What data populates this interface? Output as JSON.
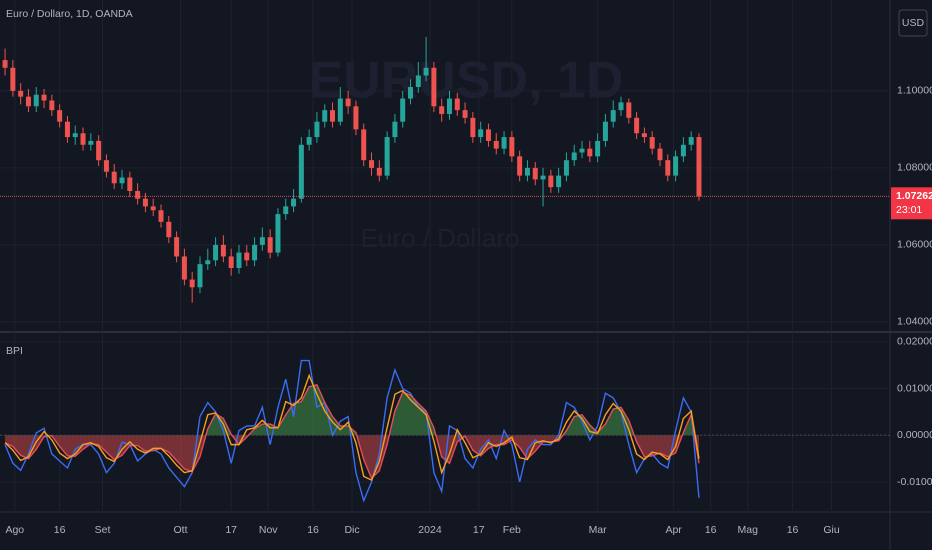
{
  "chart_data": [
    {
      "type": "candlestick",
      "title": "Euro / Dollaro, 1D, OANDA",
      "watermark": "EURUSD, 1D",
      "watermark_subtitle": "Euro / Dollaro",
      "currency": "USD",
      "up_color": "#26a69a",
      "down_color": "#ef5350",
      "grid": true,
      "x": [
        0,
        2,
        4,
        6,
        8,
        10,
        12,
        14,
        16,
        18,
        20,
        22,
        24,
        26,
        28,
        30,
        32,
        34,
        36,
        38,
        40,
        42,
        44,
        46,
        48,
        50,
        52,
        54,
        56,
        58,
        60,
        62,
        64,
        66,
        68,
        70,
        72,
        74,
        76,
        78,
        80,
        82,
        84,
        86,
        88,
        90,
        92,
        94,
        96,
        98,
        100,
        102,
        104,
        106,
        108,
        110,
        112,
        114,
        116,
        118,
        120,
        122,
        124,
        126,
        128,
        130,
        132,
        134,
        136,
        138,
        140,
        142,
        144,
        146,
        148,
        150,
        152,
        154,
        156,
        158,
        160,
        162,
        164,
        166,
        168,
        170,
        172,
        174,
        176,
        178
      ],
      "open": [
        1.108,
        1.106,
        1.1,
        1.0985,
        1.096,
        1.099,
        1.0975,
        1.095,
        1.092,
        1.088,
        1.089,
        1.086,
        1.087,
        1.082,
        1.079,
        1.076,
        1.0775,
        1.074,
        1.072,
        1.07,
        1.069,
        1.066,
        1.062,
        1.057,
        1.051,
        1.049,
        1.055,
        1.056,
        1.06,
        1.057,
        1.054,
        1.058,
        1.056,
        1.06,
        1.062,
        1.058,
        1.068,
        1.07,
        1.072,
        1.086,
        1.088,
        1.092,
        1.095,
        1.092,
        1.098,
        1.096,
        1.09,
        1.082,
        1.08,
        1.078,
        1.088,
        1.092,
        1.098,
        1.101,
        1.104,
        1.106,
        1.096,
        1.094,
        1.098,
        1.095,
        1.093,
        1.088,
        1.09,
        1.087,
        1.085,
        1.088,
        1.083,
        1.078,
        1.08,
        1.077,
        1.078,
        1.075,
        1.078,
        1.082,
        1.084,
        1.085,
        1.083,
        1.087,
        1.092,
        1.095,
        1.097,
        1.093,
        1.089,
        1.088,
        1.085,
        1.082,
        1.078,
        1.083,
        1.086,
        1.088
      ],
      "high": [
        1.111,
        1.108,
        1.102,
        1.1005,
        1.101,
        1.1005,
        1.099,
        1.0965,
        1.0935,
        1.091,
        1.0905,
        1.089,
        1.0885,
        1.0835,
        1.081,
        1.0795,
        1.079,
        1.076,
        1.0735,
        1.072,
        1.0705,
        1.0675,
        1.0635,
        1.059,
        1.053,
        1.057,
        1.059,
        1.062,
        1.0625,
        1.059,
        1.06,
        1.06,
        1.062,
        1.0645,
        1.064,
        1.0695,
        1.072,
        1.0745,
        1.088,
        1.09,
        1.0945,
        1.0965,
        1.097,
        1.101,
        1.1,
        1.0975,
        1.0915,
        1.084,
        1.082,
        1.0895,
        1.094,
        1.1,
        1.103,
        1.1075,
        1.114,
        1.1075,
        1.098,
        1.1,
        1.0995,
        1.097,
        1.0945,
        1.092,
        1.0915,
        1.089,
        1.0895,
        1.0895,
        1.0845,
        1.082,
        1.0815,
        1.08,
        1.0795,
        1.08,
        1.084,
        1.086,
        1.087,
        1.087,
        1.089,
        1.094,
        1.0975,
        1.0985,
        1.098,
        1.0945,
        1.0905,
        1.0895,
        1.0865,
        1.0835,
        1.0845,
        1.088,
        1.0895,
        1.089
      ],
      "low": [
        1.104,
        1.0985,
        1.0965,
        1.0945,
        1.0945,
        1.0955,
        1.0935,
        1.0905,
        1.0865,
        1.086,
        1.0845,
        1.0845,
        1.0805,
        1.0775,
        1.0745,
        1.0745,
        1.0725,
        1.0705,
        1.0685,
        1.0675,
        1.0645,
        1.0605,
        1.0555,
        1.0495,
        1.045,
        1.0475,
        1.0535,
        1.0545,
        1.0555,
        1.052,
        1.0525,
        1.0545,
        1.0545,
        1.0585,
        1.0565,
        1.057,
        1.0665,
        1.0685,
        1.071,
        1.0845,
        1.0865,
        1.0905,
        1.0905,
        1.091,
        1.094,
        1.0885,
        1.0805,
        1.078,
        1.0765,
        1.077,
        1.0865,
        1.0905,
        1.0965,
        1.0995,
        1.1025,
        1.0945,
        1.092,
        1.0925,
        1.0935,
        1.0915,
        1.0865,
        1.0865,
        1.0855,
        1.0835,
        1.0835,
        1.0815,
        1.0765,
        1.0765,
        1.0755,
        1.07,
        1.0735,
        1.0735,
        1.0765,
        1.0805,
        1.0825,
        1.0815,
        1.0815,
        1.0855,
        1.0905,
        1.0935,
        1.0915,
        1.0875,
        1.0865,
        1.0835,
        1.0805,
        1.0765,
        1.0765,
        1.0815,
        1.0845,
        1.0715
      ],
      "close": [
        1.106,
        1.1,
        1.0985,
        1.096,
        1.099,
        1.0975,
        1.095,
        1.092,
        1.088,
        1.089,
        1.086,
        1.087,
        1.082,
        1.079,
        1.076,
        1.0775,
        1.074,
        1.072,
        1.07,
        1.069,
        1.066,
        1.062,
        1.057,
        1.051,
        1.049,
        1.055,
        1.056,
        1.06,
        1.057,
        1.054,
        1.058,
        1.056,
        1.06,
        1.062,
        1.058,
        1.068,
        1.07,
        1.072,
        1.086,
        1.088,
        1.092,
        1.095,
        1.092,
        1.098,
        1.096,
        1.09,
        1.082,
        1.08,
        1.078,
        1.088,
        1.092,
        1.098,
        1.101,
        1.104,
        1.106,
        1.096,
        1.094,
        1.098,
        1.095,
        1.093,
        1.088,
        1.09,
        1.087,
        1.085,
        1.088,
        1.083,
        1.078,
        1.08,
        1.077,
        1.078,
        1.075,
        1.078,
        1.082,
        1.084,
        1.085,
        1.083,
        1.087,
        1.092,
        1.095,
        1.097,
        1.093,
        1.089,
        1.088,
        1.085,
        1.082,
        1.078,
        1.083,
        1.086,
        1.088,
        1.0726
      ],
      "last_price": 1.07262,
      "countdown": "23:01",
      "xlim": [
        -1.3,
        227
      ],
      "ylim": [
        1.0379,
        1.1236
      ],
      "yticks": [
        {
          "value": 1.04,
          "label": "1.04000"
        },
        {
          "value": 1.06,
          "label": "1.06000"
        },
        {
          "value": 1.08,
          "label": "1.08000"
        },
        {
          "value": 1.1,
          "label": "1.10000"
        }
      ]
    },
    {
      "type": "line",
      "title": "BPI",
      "grid": true,
      "fill_up": "rgba(76,175,80,0.45)",
      "fill_down": "rgba(239,83,80,0.45)",
      "x": [
        0,
        2,
        4,
        6,
        8,
        10,
        12,
        14,
        16,
        18,
        20,
        22,
        24,
        26,
        28,
        30,
        32,
        34,
        36,
        38,
        40,
        42,
        44,
        46,
        48,
        50,
        52,
        54,
        56,
        58,
        60,
        62,
        64,
        66,
        68,
        70,
        72,
        74,
        76,
        78,
        80,
        82,
        84,
        86,
        88,
        90,
        92,
        94,
        96,
        98,
        100,
        102,
        104,
        106,
        108,
        110,
        112,
        114,
        116,
        118,
        120,
        122,
        124,
        126,
        128,
        130,
        132,
        134,
        136,
        138,
        140,
        142,
        144,
        146,
        148,
        150,
        152,
        154,
        156,
        158,
        160,
        162,
        164,
        166,
        168,
        170,
        172,
        174,
        176,
        178
      ],
      "series": [
        {
          "color": "#3a6cf4",
          "values": [
            -0.002,
            -0.006,
            -0.0075,
            -0.004,
            0.0005,
            0.0015,
            -0.004,
            -0.0055,
            -0.007,
            -0.003,
            -0.002,
            -0.002,
            -0.004,
            -0.008,
            -0.006,
            -0.0015,
            -0.002,
            -0.0055,
            -0.004,
            -0.003,
            -0.004,
            -0.007,
            -0.009,
            -0.011,
            -0.008,
            0.004,
            0.007,
            0.005,
            0.001,
            -0.006,
            0.001,
            0.002,
            0.002,
            0.006,
            -0.002,
            0.006,
            0.012,
            0.004,
            0.016,
            0.016,
            0.006,
            0.007,
            0,
            0.003,
            0.004,
            -0.008,
            -0.014,
            -0.01,
            -0.004,
            0.008,
            0.014,
            0.01,
            0.009,
            0.006,
            0.005,
            -0.008,
            -0.012,
            0.002,
            0.001,
            -0.005,
            -0.007,
            -0.003,
            -0.001,
            -0.005,
            0.001,
            -0.002,
            -0.01,
            -0.003,
            -0.001,
            -0.002,
            -0.002,
            0,
            0.007,
            0.006,
            0.003,
            -0.001,
            0.002,
            0.009,
            0.008,
            0.005,
            -0.002,
            -0.008,
            -0.005,
            -0.004,
            -0.006,
            -0.007,
            0.001,
            0.008,
            0.005,
            -0.0134
          ]
        },
        {
          "color": "#e84b5c",
          "values": [
            -0.0016,
            -0.0024,
            -0.0043,
            -0.005,
            -0.003,
            -0.0003,
            -0.0001,
            -0.0024,
            -0.0044,
            -0.0045,
            -0.003,
            -0.0018,
            -0.002,
            -0.0036,
            -0.0052,
            -0.0043,
            -0.0022,
            -0.0022,
            -0.0034,
            -0.0033,
            -0.0028,
            -0.0036,
            -0.0054,
            -0.0072,
            -0.0078,
            -0.0046,
            0.0014,
            0.0046,
            0.0036,
            0.0002,
            -0.002,
            -0.0004,
            0.0014,
            0.0024,
            0.0024,
            0.0016,
            0.0044,
            0.0068,
            0.0072,
            0.0104,
            0.0108,
            0.007,
            0.004,
            0.002,
            0.002,
            0.0006,
            -0.0052,
            -0.0092,
            -0.0076,
            -0.002,
            0.0052,
            0.0092,
            0.0086,
            0.0068,
            0.0052,
            0.0016,
            -0.0046,
            -0.006,
            -0.0014,
            -0.0002,
            -0.0032,
            -0.0044,
            -0.0028,
            -0.002,
            -0.002,
            -0.001,
            -0.0026,
            -0.005,
            -0.0034,
            -0.0014,
            -0.0014,
            -0.0012,
            0.001,
            0.004,
            0.0044,
            0.0022,
            0.0006,
            0.0024,
            0.0056,
            0.006,
            0.0032,
            -0.0014,
            -0.0046,
            -0.0044,
            -0.0038,
            -0.0046,
            -0.0038,
            0.0006,
            0.0044,
            -0.006
          ]
        },
        {
          "color": "#f7a21b",
          "values": [
            -0.0016,
            -0.0032,
            -0.0054,
            -0.0046,
            -0.0014,
            0.0008,
            -0.001,
            -0.0038,
            -0.005,
            -0.004,
            -0.002,
            -0.0016,
            -0.0024,
            -0.0048,
            -0.0056,
            -0.003,
            -0.0014,
            -0.003,
            -0.0038,
            -0.0028,
            -0.0028,
            -0.0044,
            -0.0064,
            -0.008,
            -0.0076,
            -0.0016,
            0.0044,
            0.0048,
            0.0024,
            -0.002,
            -0.002,
            0.0012,
            0.0016,
            0.0032,
            0.0016,
            0.0016,
            0.0072,
            0.0064,
            0.008,
            0.0128,
            0.0088,
            0.0052,
            0.0028,
            0.0012,
            0.0028,
            -0.0016,
            -0.0088,
            -0.0096,
            -0.0056,
            0.0016,
            0.0088,
            0.0096,
            0.0076,
            0.006,
            0.0044,
            -0.0012,
            -0.008,
            -0.004,
            0.0012,
            -0.0016,
            -0.0048,
            -0.004,
            -0.0016,
            -0.0024,
            -0.0016,
            -0.0004,
            -0.0048,
            -0.0052,
            -0.0016,
            -0.0012,
            -0.0016,
            -0.0008,
            0.0028,
            0.0052,
            0.0036,
            0.0008,
            0.0004,
            0.0044,
            0.0068,
            0.0052,
            0.0012,
            -0.004,
            -0.0052,
            -0.0036,
            -0.004,
            -0.0052,
            -0.0024,
            0.0036,
            0.0052,
            -0.005
          ]
        }
      ],
      "xlim": [
        -1.3,
        227
      ],
      "xticks": [
        {
          "value": 2.5,
          "label": "Ago"
        },
        {
          "value": 14,
          "label": "16"
        },
        {
          "value": 25,
          "label": "Set"
        },
        {
          "value": 45,
          "label": "Ott"
        },
        {
          "value": 58,
          "label": "17"
        },
        {
          "value": 67.5,
          "label": "Nov"
        },
        {
          "value": 79,
          "label": "16"
        },
        {
          "value": 89,
          "label": "Dic"
        },
        {
          "value": 109,
          "label": "2024"
        },
        {
          "value": 121.5,
          "label": "17"
        },
        {
          "value": 130,
          "label": "Feb"
        },
        {
          "value": 152,
          "label": "Mar"
        },
        {
          "value": 171.5,
          "label": "Apr"
        },
        {
          "value": 181,
          "label": "16"
        },
        {
          "value": 190.5,
          "label": "Mag"
        },
        {
          "value": 202,
          "label": "16"
        },
        {
          "value": 212,
          "label": "Giu"
        }
      ],
      "ylim": [
        -0.016,
        0.0219
      ],
      "yticks": [
        {
          "value": -0.01,
          "label": "-0.01000"
        },
        {
          "value": 0,
          "label": "0.00000"
        },
        {
          "value": 0.01,
          "label": "0.01000"
        },
        {
          "value": 0.02,
          "label": "0.02000"
        }
      ]
    }
  ]
}
